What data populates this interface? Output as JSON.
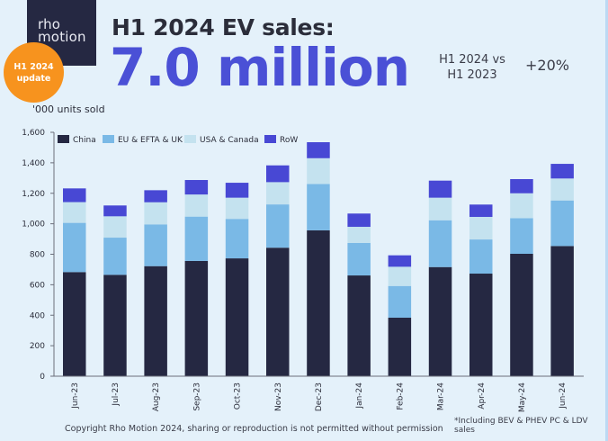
{
  "logo": {
    "text": "rho\nmotion"
  },
  "badge": {
    "text": "H1 2024\nupdate",
    "color": "#f7931e"
  },
  "header": {
    "title": "H1 2024 EV sales:",
    "headline_value": "7.0 million",
    "comparison_label": "H1 2024 vs\nH1 2023",
    "comparison_value": "+20%"
  },
  "units_label": "'000 units sold",
  "footer": {
    "copyright": "Copyright Rho Motion 2024, sharing or reproduction is not permitted without permission",
    "footnote": "*Including BEV & PHEV PC & LDV sales"
  },
  "chart_data": {
    "type": "bar",
    "stacked": true,
    "title": "H1 2024 EV sales: 7.0 million",
    "xlabel": "",
    "ylabel": "'000 units sold",
    "ylim": [
      0,
      1600
    ],
    "yticks": [
      0,
      200,
      400,
      600,
      800,
      1000,
      1200,
      1400,
      1600
    ],
    "ytick_labels": [
      "0",
      "200",
      "400",
      "600",
      "800",
      "1,000",
      "1,200",
      "1,400",
      "1,600"
    ],
    "grid": false,
    "legend_position": "top-left",
    "categories": [
      "Jun-23",
      "Jul-23",
      "Aug-23",
      "Sep-23",
      "Oct-23",
      "Nov-23",
      "Dec-23",
      "Jan-24",
      "Feb-24",
      "Mar-24",
      "Apr-24",
      "May-24",
      "Jun-24"
    ],
    "series": [
      {
        "name": "China",
        "color": "#252842",
        "values": [
          683,
          665,
          722,
          756,
          773,
          843,
          957,
          661,
          384,
          716,
          673,
          803,
          854
        ]
      },
      {
        "name": "EU & EFTA & UK",
        "color": "#7ab9e6",
        "values": [
          323,
          244,
          274,
          291,
          259,
          284,
          304,
          213,
          208,
          307,
          224,
          234,
          299
        ]
      },
      {
        "name": "USA & Canada",
        "color": "#c4e2ef",
        "values": [
          136,
          140,
          145,
          145,
          139,
          146,
          169,
          106,
          126,
          148,
          148,
          163,
          144
        ]
      },
      {
        "name": "RoW",
        "color": "#4848d4",
        "values": [
          90,
          71,
          79,
          95,
          98,
          110,
          105,
          87,
          75,
          112,
          81,
          93,
          96
        ]
      }
    ]
  }
}
